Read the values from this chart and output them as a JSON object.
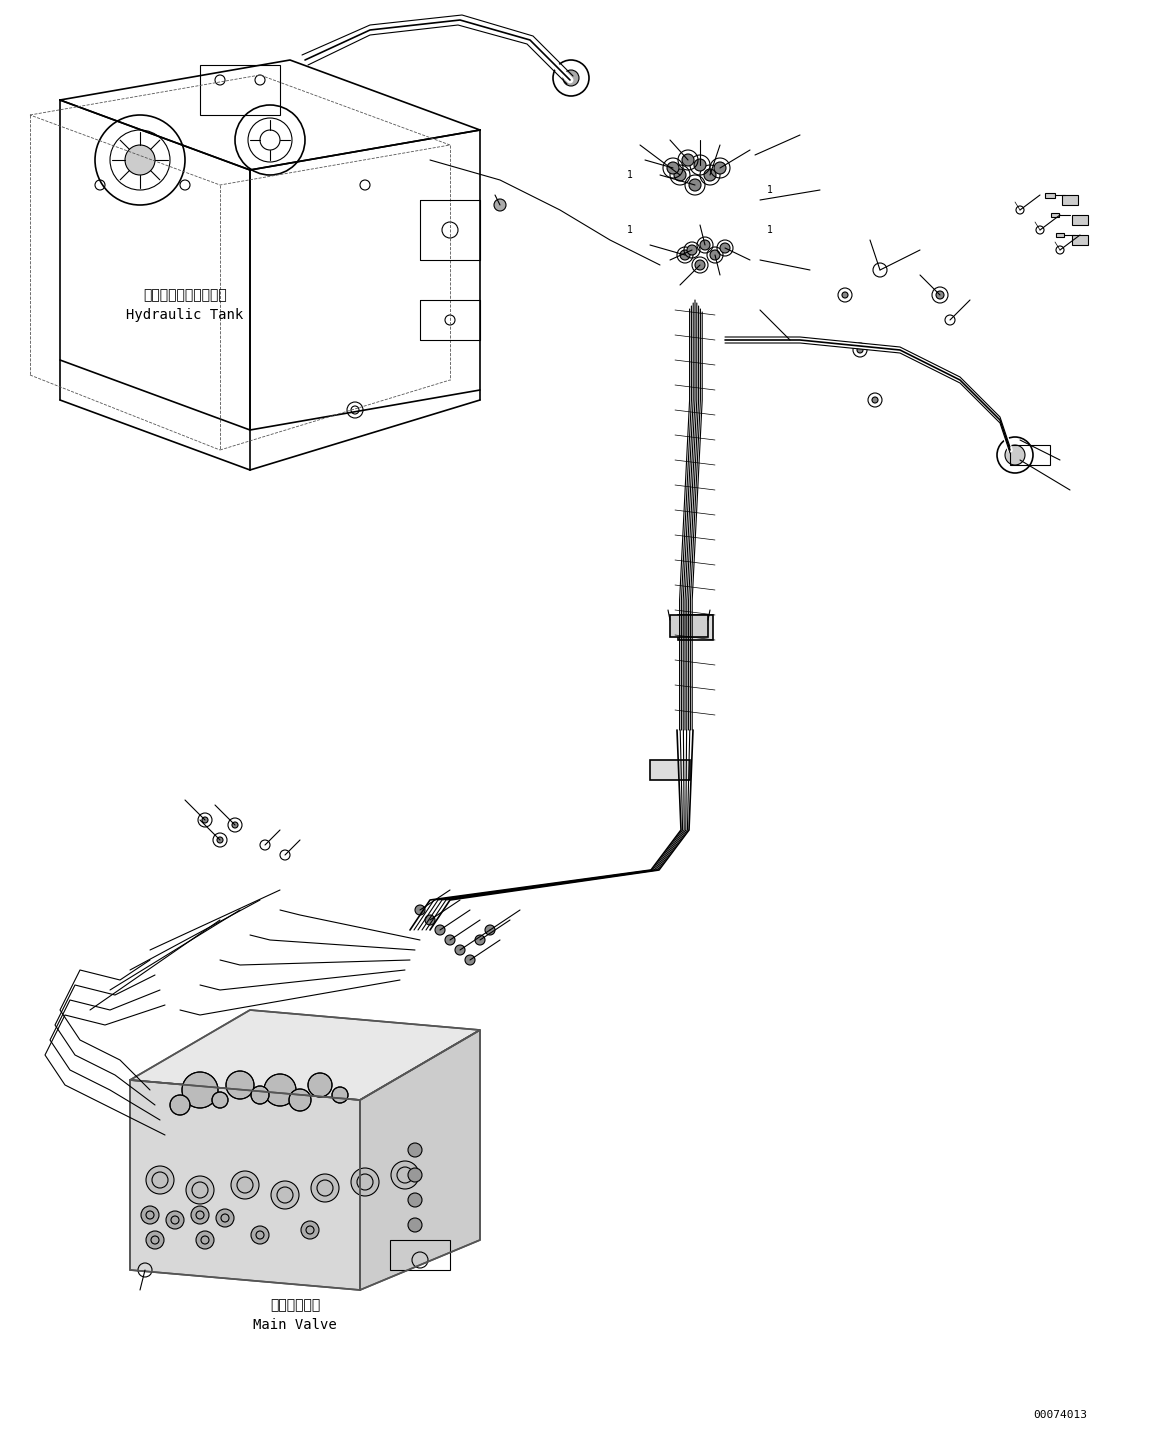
{
  "bg_color": "#ffffff",
  "line_color": "#000000",
  "figsize": [
    11.63,
    14.43
  ],
  "dpi": 100,
  "part_number": "00074013",
  "label_hydraulic_tank_jp": "ハイドロリックタンク",
  "label_hydraulic_tank_en": "Hydraulic Tank",
  "label_main_valve_jp": "メインバルブ",
  "label_main_valve_en": "Main Valve"
}
